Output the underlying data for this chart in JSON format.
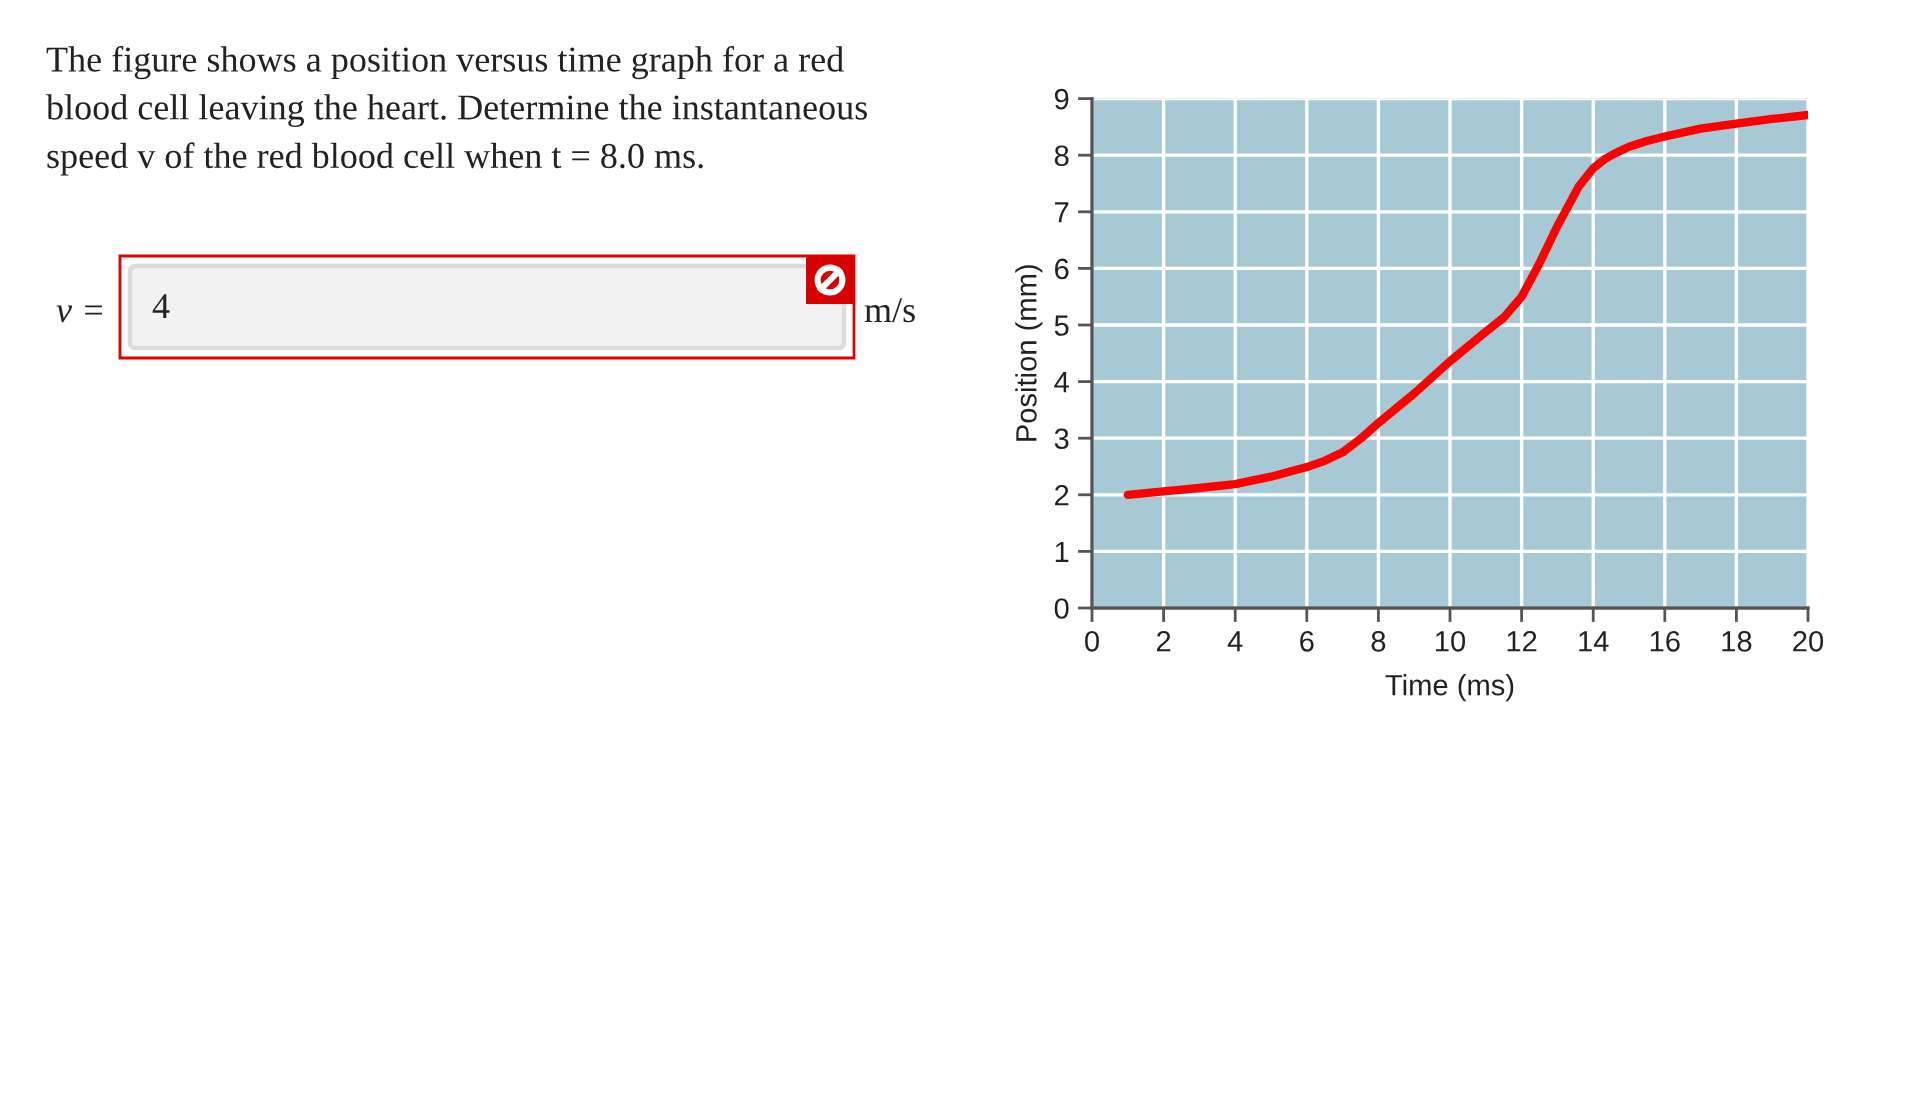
{
  "chart_data": {
    "type": "line",
    "xlabel": "Time (ms)",
    "ylabel": "Position (mm)",
    "annotations": [
      "The figure shows a position versus time graph for a red\nblood cell leaving the heart. Determine the instantaneous\nspeed v of the red blood cell when t = 8.0 ms.",
      "v =",
      "4",
      "m/s"
    ],
    "series": [
      {
        "color": "#ff0000",
        "x": [
          1.0,
          2,
          3,
          4,
          5,
          6,
          6.5,
          7,
          7.5,
          8,
          9,
          10,
          11,
          11.5,
          12,
          12.5,
          13,
          13.3,
          13.6,
          14,
          14.3,
          14.6,
          15,
          15.5,
          16,
          17,
          18,
          19,
          20
        ],
        "values": [
          2.0,
          2.06,
          2.12,
          2.19,
          2.32,
          2.49,
          2.6,
          2.75,
          2.99,
          3.27,
          3.79,
          4.36,
          4.88,
          5.13,
          5.5,
          6.09,
          6.75,
          7.1,
          7.45,
          7.77,
          7.92,
          8.03,
          8.15,
          8.25,
          8.33,
          8.47,
          8.56,
          8.64,
          8.71
        ]
      }
    ],
    "xlim": [
      0,
      20
    ],
    "ylim": [
      0,
      9
    ],
    "xticks": [
      0,
      2,
      4,
      6,
      8,
      10,
      12,
      14,
      16,
      18,
      20
    ],
    "yticks": [
      0,
      1,
      2,
      3,
      4,
      5,
      6,
      7,
      8,
      9
    ],
    "grid": true,
    "line_style": "solid"
  }
}
